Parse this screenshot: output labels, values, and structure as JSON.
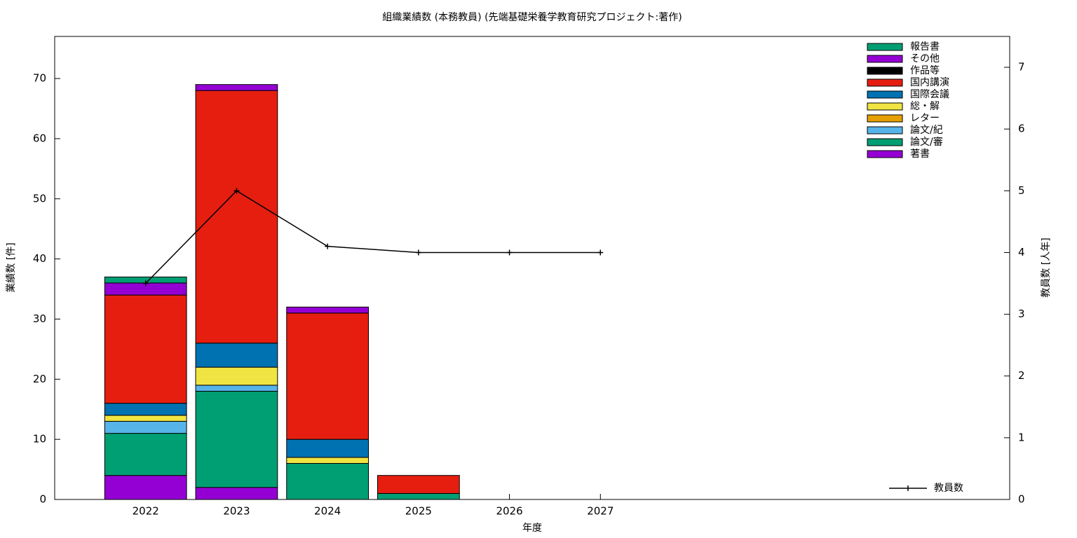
{
  "chart_data": {
    "type": "bar",
    "stacked": true,
    "title": "組織業績数 (本務教員) (先端基礎栄養学教育研究プロジェクト:著作)",
    "xlabel": "年度",
    "ylabel": "業績数 [件]",
    "y2label": "教員数 [人年]",
    "x": [
      2022,
      2023,
      2024,
      2025,
      2026,
      2027
    ],
    "xlim": [
      2021,
      2031.5
    ],
    "xticks": [
      2022,
      2023,
      2024,
      2025,
      2026,
      2027
    ],
    "ylim": [
      0,
      77
    ],
    "yticks": [
      0,
      10,
      20,
      30,
      40,
      50,
      60,
      70
    ],
    "y2lim": [
      0,
      7.5
    ],
    "y2ticks": [
      0,
      1,
      2,
      3,
      4,
      5,
      6,
      7
    ],
    "series": [
      {
        "name": "著書",
        "color": "#9400d3",
        "values": [
          4,
          2,
          0,
          0,
          0,
          0
        ]
      },
      {
        "name": "論文/審",
        "color": "#009e73",
        "values": [
          7,
          16,
          6,
          1,
          0,
          0
        ]
      },
      {
        "name": "論文/紀",
        "color": "#56b4e9",
        "values": [
          2,
          1,
          0,
          0,
          0,
          0
        ]
      },
      {
        "name": "レター",
        "color": "#e69f00",
        "values": [
          0,
          0,
          0,
          0,
          0,
          0
        ]
      },
      {
        "name": "総・解",
        "color": "#f0e442",
        "values": [
          1,
          3,
          1,
          0,
          0,
          0
        ]
      },
      {
        "name": "国際会議",
        "color": "#0072b2",
        "values": [
          2,
          4,
          3,
          0,
          0,
          0
        ]
      },
      {
        "name": "国内講演",
        "color": "#e51e10",
        "values": [
          18,
          42,
          21,
          3,
          0,
          0
        ]
      },
      {
        "name": "作品等",
        "color": "#000000",
        "values": [
          0,
          0,
          0,
          0,
          0,
          0
        ]
      },
      {
        "name": "その他",
        "color": "#9400d3",
        "values": [
          2,
          1,
          1,
          0,
          0,
          0
        ]
      },
      {
        "name": "報告書",
        "color": "#009e73",
        "values": [
          1,
          0,
          0,
          0,
          0,
          0
        ]
      },
      {
        "name": "教員数",
        "type": "line",
        "axis": "y2",
        "color": "#000000",
        "values": [
          3.5,
          5,
          4.1,
          4,
          4,
          4
        ]
      }
    ]
  }
}
